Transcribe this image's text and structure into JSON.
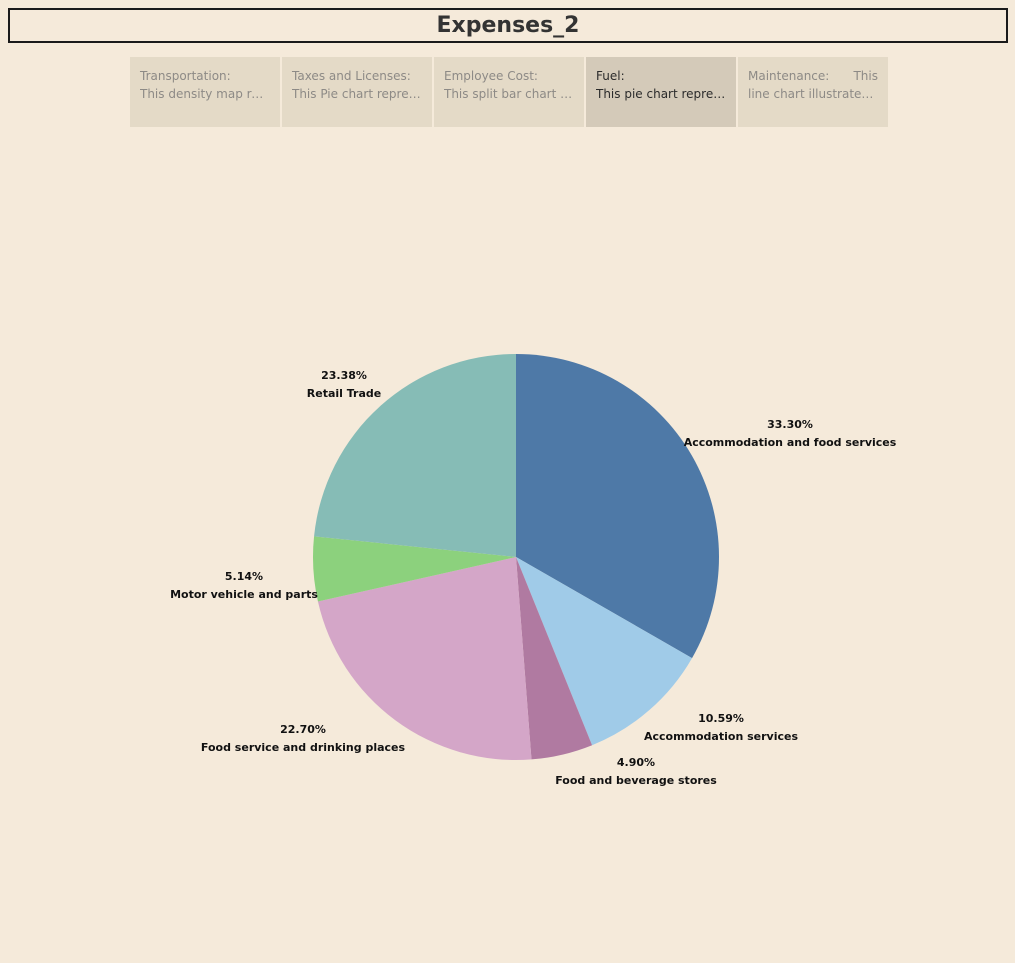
{
  "title": "Expenses_2",
  "tabs": [
    {
      "label": "Transportation:",
      "extra": "",
      "desc": "This density map repr.."
    },
    {
      "label": "Taxes and Licenses:",
      "extra": "",
      "desc": "This Pie chart represe.."
    },
    {
      "label": "Employee Cost:",
      "extra": "",
      "desc": "This split bar chart pr.."
    },
    {
      "label": "Fuel:",
      "extra": "",
      "desc": "This pie chart represe.."
    },
    {
      "label": "Maintenance:",
      "extra": "This",
      "desc": "line chart illustrates t.."
    }
  ],
  "active_tab": 3,
  "chart_data": {
    "type": "pie",
    "start_angle_deg": 0,
    "direction": "clockwise",
    "slices": [
      {
        "label": "Accommodation and food services",
        "value": 33.3,
        "value_label": "33.30%",
        "color": "#4e79a7"
      },
      {
        "label": "Accommodation services",
        "value": 10.59,
        "value_label": "10.59%",
        "color": "#a0cbe8"
      },
      {
        "label": "Food and beverage stores",
        "value": 4.9,
        "value_label": "4.90%",
        "color": "#b07aa1"
      },
      {
        "label": "Food service and drinking places",
        "value": 22.7,
        "value_label": "22.70%",
        "color": "#d4a6c8"
      },
      {
        "label": "Motor vehicle and parts",
        "value": 5.14,
        "value_label": "5.14%",
        "color": "#8cd17d"
      },
      {
        "label": "Retail Trade",
        "value": 23.38,
        "value_label": "23.38%",
        "color": "#86bcb6"
      }
    ]
  }
}
